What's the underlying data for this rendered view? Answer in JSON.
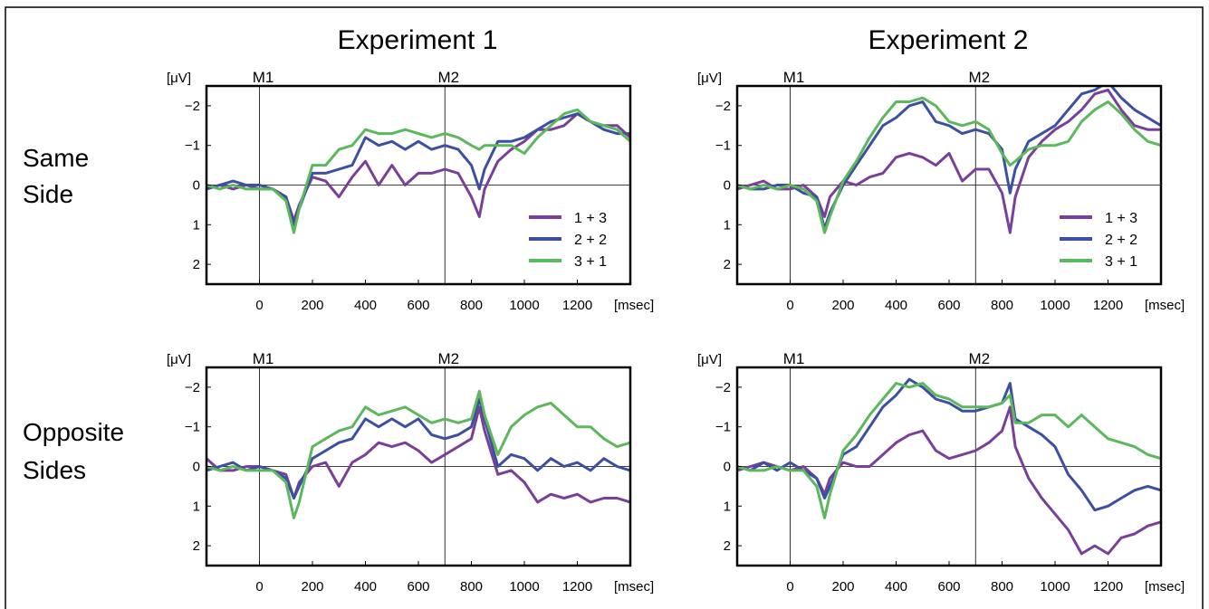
{
  "figure": {
    "columns": [
      "Experiment 1",
      "Experiment 2"
    ],
    "rows": [
      "Same\nSide",
      "Opposite\nSides"
    ]
  },
  "colors": {
    "1 + 3": "#7a3f98",
    "2 + 2": "#3c4fa0",
    "3 + 1": "#5cb85c"
  },
  "chart_data": [
    {
      "type": "line",
      "row": 0,
      "col": 0,
      "xlabel": "[msec]",
      "ylabel": "[μV]",
      "xlim": [
        -200,
        1400
      ],
      "ylim": [
        -2.5,
        2.5
      ],
      "y_inverted": true,
      "xticks": [
        0,
        200,
        400,
        600,
        800,
        1000,
        1200
      ],
      "yticks": [
        -2,
        -1,
        0,
        1,
        2
      ],
      "markers": [
        {
          "label": "M1",
          "x": 0
        },
        {
          "label": "M2",
          "x": 700
        }
      ],
      "legend": true,
      "legend_position": "bottom-right",
      "x": [
        -200,
        -150,
        -100,
        -50,
        0,
        50,
        100,
        130,
        150,
        200,
        250,
        300,
        350,
        400,
        450,
        500,
        550,
        600,
        650,
        700,
        750,
        800,
        830,
        850,
        900,
        950,
        1000,
        1050,
        1100,
        1150,
        1200,
        1250,
        1300,
        1350,
        1400
      ],
      "series": [
        {
          "name": "1 + 3",
          "values": [
            0.1,
            0.0,
            0.1,
            0.0,
            0.1,
            0.1,
            0.3,
            0.9,
            0.5,
            -0.2,
            -0.1,
            0.3,
            -0.2,
            -0.6,
            0.0,
            -0.5,
            0.0,
            -0.3,
            -0.3,
            -0.4,
            -0.3,
            0.3,
            0.8,
            0.1,
            -0.6,
            -0.9,
            -1.1,
            -1.4,
            -1.4,
            -1.5,
            -1.8,
            -1.6,
            -1.5,
            -1.5,
            -1.2
          ]
        },
        {
          "name": "2 + 2",
          "values": [
            0.1,
            0.0,
            -0.1,
            0.0,
            0.0,
            0.1,
            0.3,
            1.0,
            0.6,
            -0.3,
            -0.3,
            -0.4,
            -0.5,
            -1.2,
            -1.0,
            -1.1,
            -0.9,
            -1.1,
            -0.9,
            -1.0,
            -0.9,
            -0.5,
            0.1,
            -0.4,
            -1.1,
            -1.1,
            -1.2,
            -1.4,
            -1.6,
            -1.7,
            -1.8,
            -1.6,
            -1.4,
            -1.3,
            -1.3
          ]
        },
        {
          "name": "3 + 1",
          "values": [
            0.0,
            0.1,
            0.0,
            0.1,
            0.1,
            0.1,
            0.4,
            1.2,
            0.6,
            -0.5,
            -0.5,
            -0.9,
            -1.0,
            -1.4,
            -1.3,
            -1.3,
            -1.4,
            -1.3,
            -1.2,
            -1.3,
            -1.2,
            -1.0,
            -0.9,
            -1.0,
            -1.0,
            -1.0,
            -0.8,
            -1.2,
            -1.5,
            -1.8,
            -1.9,
            -1.6,
            -1.5,
            -1.4,
            -1.1
          ]
        }
      ]
    },
    {
      "type": "line",
      "row": 0,
      "col": 1,
      "xlabel": "[msec]",
      "ylabel": "[μV]",
      "xlim": [
        -200,
        1400
      ],
      "ylim": [
        -2.5,
        2.5
      ],
      "y_inverted": true,
      "xticks": [
        0,
        200,
        400,
        600,
        800,
        1000,
        1200
      ],
      "yticks": [
        -2,
        -1,
        0,
        1,
        2
      ],
      "markers": [
        {
          "label": "M1",
          "x": 0
        },
        {
          "label": "M2",
          "x": 700
        }
      ],
      "legend": true,
      "legend_position": "bottom-right",
      "x": [
        -200,
        -150,
        -100,
        -50,
        0,
        50,
        100,
        130,
        150,
        200,
        250,
        300,
        350,
        400,
        450,
        500,
        550,
        600,
        650,
        700,
        750,
        800,
        830,
        850,
        900,
        950,
        1000,
        1050,
        1100,
        1150,
        1200,
        1250,
        1300,
        1350,
        1400
      ],
      "series": [
        {
          "name": "1 + 3",
          "values": [
            0.1,
            0.0,
            -0.1,
            0.1,
            0.1,
            0.0,
            0.3,
            0.8,
            0.3,
            -0.1,
            0.0,
            -0.2,
            -0.3,
            -0.7,
            -0.8,
            -0.7,
            -0.5,
            -0.8,
            -0.1,
            -0.4,
            -0.4,
            0.2,
            1.2,
            0.3,
            -0.7,
            -1.1,
            -1.4,
            -1.6,
            -1.9,
            -2.3,
            -2.4,
            -1.9,
            -1.5,
            -1.4,
            -1.4
          ]
        },
        {
          "name": "2 + 2",
          "values": [
            0.0,
            0.1,
            0.1,
            0.0,
            0.0,
            0.2,
            0.3,
            1.1,
            0.7,
            0.0,
            -0.5,
            -1.0,
            -1.5,
            -1.7,
            -2.0,
            -2.1,
            -1.6,
            -1.5,
            -1.3,
            -1.4,
            -1.3,
            -0.9,
            0.2,
            -0.4,
            -1.1,
            -1.3,
            -1.5,
            -1.9,
            -2.3,
            -2.4,
            -2.6,
            -2.2,
            -1.9,
            -1.7,
            -1.5
          ]
        },
        {
          "name": "3 + 1",
          "values": [
            0.0,
            0.1,
            0.0,
            0.1,
            0.0,
            0.1,
            0.4,
            1.2,
            0.8,
            -0.1,
            -0.6,
            -1.2,
            -1.7,
            -2.1,
            -2.1,
            -2.2,
            -2.0,
            -1.6,
            -1.5,
            -1.6,
            -1.4,
            -0.8,
            -0.5,
            -0.6,
            -0.9,
            -1.0,
            -1.0,
            -1.1,
            -1.6,
            -1.9,
            -2.1,
            -1.8,
            -1.4,
            -1.1,
            -1.0
          ]
        }
      ]
    },
    {
      "type": "line",
      "row": 1,
      "col": 0,
      "xlabel": "[msec]",
      "ylabel": "[μV]",
      "xlim": [
        -200,
        1400
      ],
      "ylim": [
        -2.5,
        2.5
      ],
      "y_inverted": true,
      "xticks": [
        0,
        200,
        400,
        600,
        800,
        1000,
        1200
      ],
      "yticks": [
        -2,
        -1,
        0,
        1,
        2
      ],
      "markers": [
        {
          "label": "M1",
          "x": 0
        },
        {
          "label": "M2",
          "x": 700
        }
      ],
      "legend": false,
      "x": [
        -200,
        -150,
        -100,
        -50,
        0,
        50,
        100,
        130,
        150,
        200,
        250,
        300,
        350,
        400,
        450,
        500,
        550,
        600,
        650,
        700,
        750,
        800,
        830,
        850,
        900,
        950,
        1000,
        1050,
        1100,
        1150,
        1200,
        1250,
        1300,
        1350,
        1400
      ],
      "series": [
        {
          "name": "1 + 3",
          "values": [
            -0.2,
            0.1,
            0.1,
            0.0,
            0.0,
            0.1,
            0.2,
            0.8,
            0.4,
            0.0,
            -0.1,
            0.5,
            -0.1,
            -0.3,
            -0.6,
            -0.5,
            -0.6,
            -0.4,
            -0.1,
            -0.3,
            -0.5,
            -0.7,
            -1.5,
            -0.9,
            0.2,
            0.1,
            0.4,
            0.9,
            0.7,
            0.8,
            0.7,
            0.9,
            0.8,
            0.8,
            0.9
          ]
        },
        {
          "name": "2 + 2",
          "values": [
            0.1,
            0.0,
            -0.1,
            0.1,
            0.0,
            0.1,
            0.3,
            0.8,
            0.5,
            -0.2,
            -0.4,
            -0.6,
            -0.7,
            -1.2,
            -1.0,
            -1.2,
            -1.0,
            -1.2,
            -0.8,
            -0.7,
            -0.8,
            -1.0,
            -1.7,
            -1.2,
            0.0,
            -0.3,
            -0.2,
            0.1,
            -0.2,
            0.0,
            -0.1,
            0.1,
            -0.2,
            0.0,
            0.1
          ]
        },
        {
          "name": "3 + 1",
          "values": [
            0.0,
            0.1,
            0.0,
            0.1,
            0.1,
            0.1,
            0.4,
            1.3,
            0.9,
            -0.5,
            -0.7,
            -0.9,
            -1.0,
            -1.5,
            -1.3,
            -1.4,
            -1.5,
            -1.3,
            -1.1,
            -1.2,
            -1.1,
            -1.2,
            -1.9,
            -1.3,
            -0.3,
            -1.0,
            -1.3,
            -1.5,
            -1.6,
            -1.3,
            -1.0,
            -1.0,
            -0.7,
            -0.5,
            -0.6
          ]
        }
      ]
    },
    {
      "type": "line",
      "row": 1,
      "col": 1,
      "xlabel": "[msec]",
      "ylabel": "[μV]",
      "xlim": [
        -200,
        1400
      ],
      "ylim": [
        -2.5,
        2.5
      ],
      "y_inverted": true,
      "xticks": [
        0,
        200,
        400,
        600,
        800,
        1000,
        1200
      ],
      "yticks": [
        -2,
        -1,
        0,
        1,
        2
      ],
      "markers": [
        {
          "label": "M1",
          "x": 0
        },
        {
          "label": "M2",
          "x": 700
        }
      ],
      "legend": false,
      "x": [
        -200,
        -150,
        -100,
        -50,
        0,
        50,
        100,
        130,
        150,
        200,
        250,
        300,
        350,
        400,
        450,
        500,
        550,
        600,
        650,
        700,
        750,
        800,
        830,
        850,
        900,
        950,
        1000,
        1050,
        1100,
        1150,
        1200,
        1250,
        1300,
        1350,
        1400
      ],
      "series": [
        {
          "name": "1 + 3",
          "values": [
            0.1,
            0.0,
            -0.1,
            0.0,
            0.1,
            0.0,
            0.3,
            0.7,
            0.3,
            -0.1,
            0.0,
            0.0,
            -0.3,
            -0.6,
            -0.8,
            -0.9,
            -0.4,
            -0.2,
            -0.3,
            -0.4,
            -0.6,
            -0.9,
            -1.5,
            -0.5,
            0.3,
            0.8,
            1.2,
            1.6,
            2.2,
            2.0,
            2.2,
            1.8,
            1.7,
            1.5,
            1.4
          ]
        },
        {
          "name": "2 + 2",
          "values": [
            0.0,
            0.1,
            -0.1,
            0.1,
            -0.1,
            0.1,
            0.3,
            0.8,
            0.5,
            -0.3,
            -0.5,
            -1.0,
            -1.5,
            -1.8,
            -2.2,
            -2.0,
            -1.7,
            -1.6,
            -1.4,
            -1.4,
            -1.5,
            -1.6,
            -2.1,
            -1.2,
            -1.0,
            -0.8,
            -0.5,
            0.2,
            0.6,
            1.1,
            1.0,
            0.8,
            0.6,
            0.5,
            0.6
          ]
        },
        {
          "name": "3 + 1",
          "values": [
            0.0,
            0.1,
            0.1,
            0.0,
            0.1,
            0.1,
            0.5,
            1.3,
            0.7,
            -0.4,
            -0.8,
            -1.3,
            -1.7,
            -2.1,
            -2.0,
            -2.1,
            -1.8,
            -1.7,
            -1.5,
            -1.5,
            -1.5,
            -1.6,
            -1.8,
            -1.1,
            -1.1,
            -1.3,
            -1.3,
            -1.0,
            -1.3,
            -1.0,
            -0.7,
            -0.6,
            -0.5,
            -0.3,
            -0.2
          ]
        }
      ]
    }
  ]
}
